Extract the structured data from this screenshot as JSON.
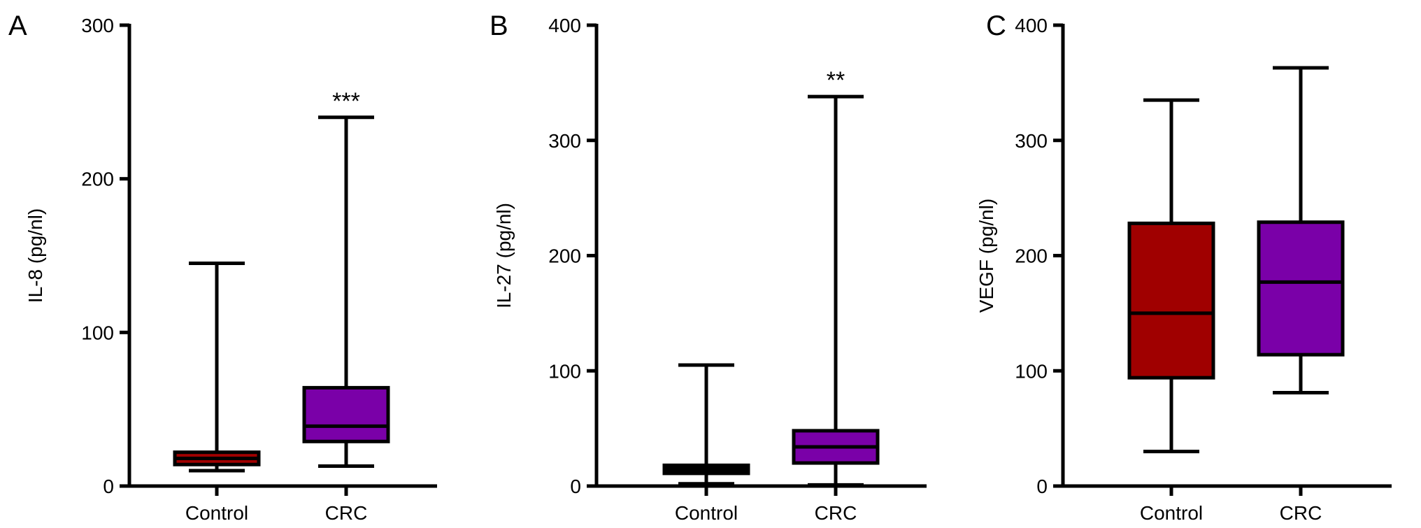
{
  "chart_data": [
    {
      "type": "box",
      "panel_label": "A",
      "xlabel": "",
      "ylabel": "IL-8 (pg/nl)",
      "ylim": [
        0,
        300
      ],
      "yticks": [
        0,
        100,
        200,
        300
      ],
      "tick_labels": [
        "0",
        "100",
        "200",
        "300"
      ],
      "categories": [
        "Control",
        "CRC"
      ],
      "boxes": [
        {
          "category": "Control",
          "min": 10,
          "q1": 14,
          "median": 18,
          "q3": 22,
          "max": 145,
          "color": "#a00000",
          "significance": ""
        },
        {
          "category": "CRC",
          "min": 13,
          "q1": 29,
          "median": 39,
          "q3": 64,
          "max": 240,
          "color": "#7a00a8",
          "significance": "***"
        }
      ],
      "grid": false,
      "legend": "none"
    },
    {
      "type": "box",
      "panel_label": "B",
      "xlabel": "",
      "ylabel": "IL-27 (pg/nl)",
      "ylim": [
        0,
        400
      ],
      "yticks": [
        0,
        100,
        200,
        300,
        400
      ],
      "tick_labels": [
        "0",
        "100",
        "200",
        "300",
        "400"
      ],
      "categories": [
        "Control",
        "CRC"
      ],
      "boxes": [
        {
          "category": "Control",
          "min": 2,
          "q1": 11,
          "median": 14,
          "q3": 18,
          "max": 105,
          "color": "#000000",
          "significance": ""
        },
        {
          "category": "CRC",
          "min": 1,
          "q1": 20,
          "median": 34,
          "q3": 48,
          "max": 338,
          "color": "#7a00a8",
          "significance": "**"
        }
      ],
      "grid": false,
      "legend": "none"
    },
    {
      "type": "box",
      "panel_label": "C",
      "xlabel": "",
      "ylabel": "VEGF (pg/nl)",
      "ylim": [
        0,
        400
      ],
      "yticks": [
        0,
        100,
        200,
        300,
        400
      ],
      "tick_labels": [
        "0",
        "100",
        "200",
        "300",
        "400"
      ],
      "categories": [
        "Control",
        "CRC"
      ],
      "boxes": [
        {
          "category": "Control",
          "min": 30,
          "q1": 94,
          "median": 150,
          "q3": 228,
          "max": 335,
          "color": "#a00000",
          "significance": ""
        },
        {
          "category": "CRC",
          "min": 81,
          "q1": 114,
          "median": 177,
          "q3": 229,
          "max": 363,
          "color": "#7a00a8",
          "significance": ""
        }
      ],
      "grid": false,
      "legend": "none"
    }
  ]
}
